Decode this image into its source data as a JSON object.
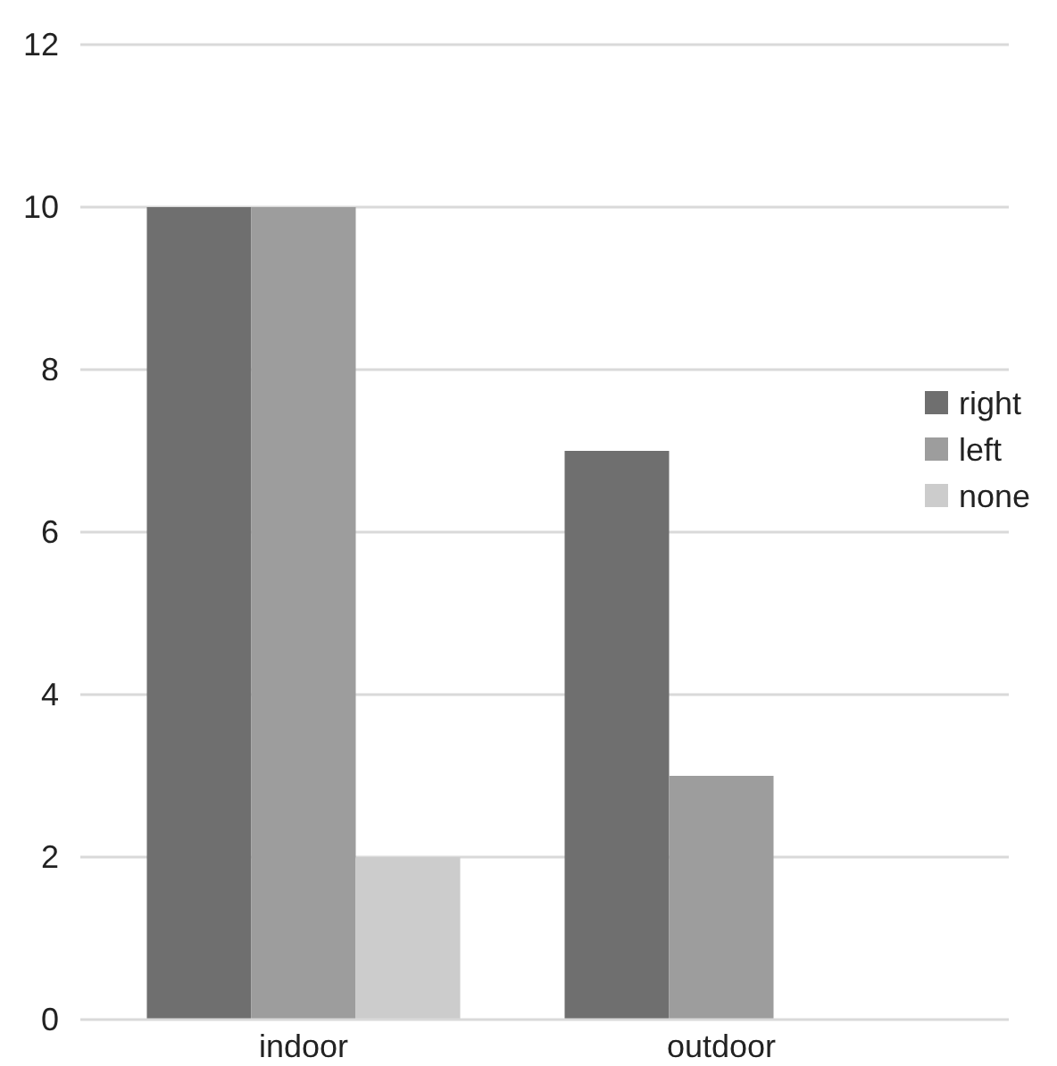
{
  "chart_data": {
    "type": "bar",
    "categories": [
      "indoor",
      "outdoor"
    ],
    "series": [
      {
        "name": "right",
        "color": "#6f6f6f",
        "values": [
          10,
          7
        ]
      },
      {
        "name": "left",
        "color": "#9d9d9d",
        "values": [
          10,
          3
        ]
      },
      {
        "name": "none",
        "color": "#cccccc",
        "values": [
          2,
          0
        ]
      }
    ],
    "ylim": [
      0,
      12
    ],
    "yticks": [
      0,
      2,
      4,
      6,
      8,
      10,
      12
    ],
    "grid": "y",
    "legend": "right"
  }
}
